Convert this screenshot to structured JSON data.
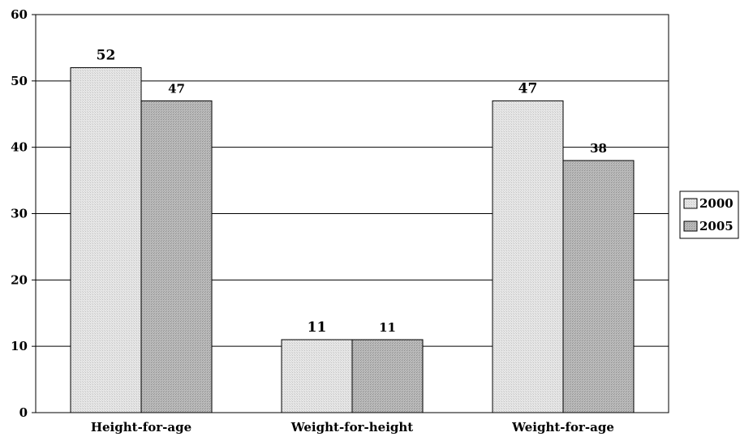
{
  "chart_data": {
    "type": "bar",
    "categories": [
      "Height-for-age",
      "Weight-for-height",
      "Weight-for-age"
    ],
    "series": [
      {
        "name": "2000",
        "values": [
          52,
          11,
          47
        ],
        "color": "#e2e2e2"
      },
      {
        "name": "2005",
        "values": [
          47,
          11,
          38
        ],
        "color": "#b4b4b4"
      }
    ],
    "y_ticks": [
      0,
      10,
      20,
      30,
      40,
      50,
      60
    ],
    "ylim": [
      0,
      60
    ],
    "grid": true,
    "legend_position": "right",
    "title": "",
    "xlabel": "",
    "ylabel": ""
  }
}
